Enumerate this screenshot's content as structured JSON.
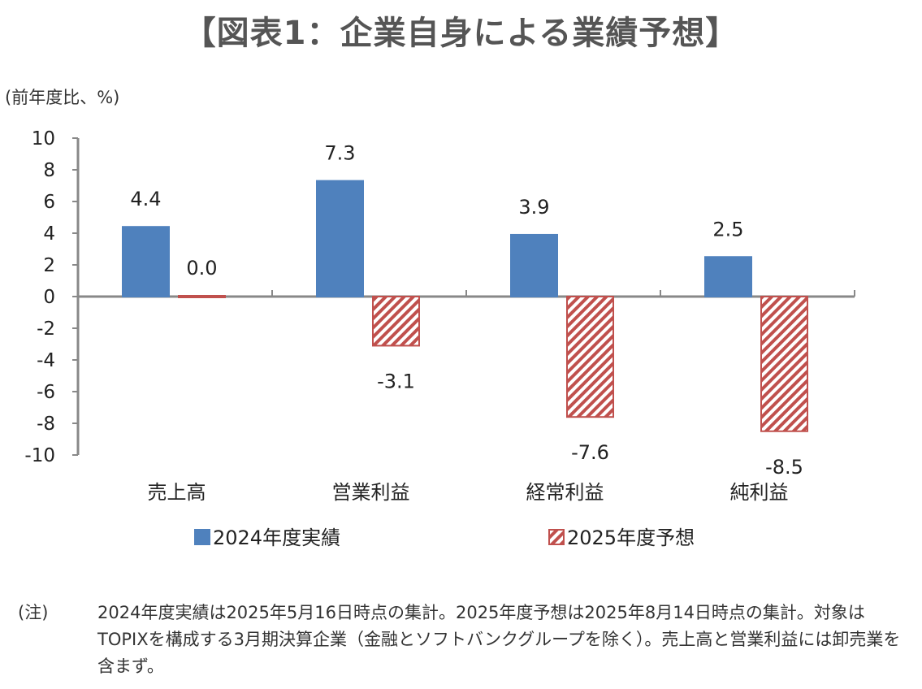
{
  "title": "【図表1：企業自身による業績予想】",
  "chart_data": {
    "type": "bar",
    "unit_label": "(前年度比、%)",
    "categories": [
      "売上高",
      "営業利益",
      "経常利益",
      "純利益"
    ],
    "series": [
      {
        "name": "2024年度実績",
        "values": [
          4.4,
          7.3,
          3.9,
          2.5
        ],
        "color": "#4F81BD",
        "pattern": "solid"
      },
      {
        "name": "2025年度予想",
        "values": [
          0.0,
          -3.1,
          -7.6,
          -8.5
        ],
        "color": "#C0504D",
        "pattern": "diagonal-hatch"
      }
    ],
    "value_labels": [
      [
        "4.4",
        "7.3",
        "3.9",
        "2.5"
      ],
      [
        "0.0",
        "-3.1",
        "-7.6",
        "-8.5"
      ]
    ],
    "ylim": [
      -10,
      10
    ],
    "yticks": [
      "10",
      "8",
      "6",
      "4",
      "2",
      "0",
      "-2",
      "-4",
      "-6",
      "-8",
      "-10"
    ],
    "grid": false,
    "legend_position": "bottom"
  },
  "note": {
    "label": "(注)",
    "text": "2024年度実績は2025年5月16日時点の集計。2025年度予想は2025年8月14日時点の集計。対象はTOPIXを構成する3月期決算企業（金融とソフトバンクグループを除く）。売上高と営業利益には卸売業を含まず。"
  }
}
